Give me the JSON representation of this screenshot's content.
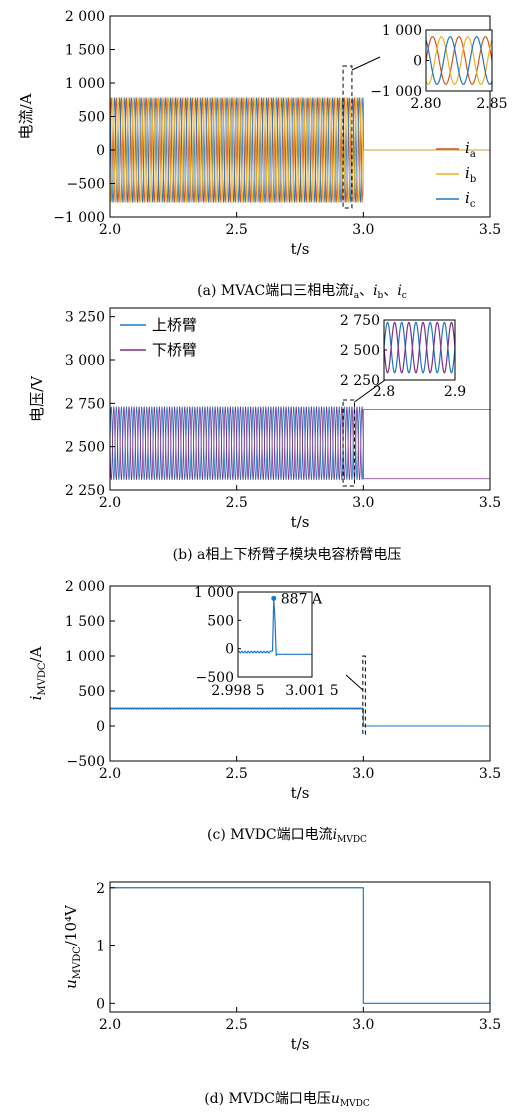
{
  "colors": {
    "ia": "#d9541e",
    "ib": "#edb120",
    "ic": "#1f77c4",
    "upper": "#1f77c4",
    "lower": "#7e2f8e",
    "line": "#1f77c4"
  },
  "chart_data": [
    {
      "id": "a",
      "type": "line",
      "caption_prefix": "(a)  MVAC端口三相电流",
      "caption_vars": "i",
      "caption_subs": [
        "a",
        "b",
        "c"
      ],
      "xlabel": "t/s",
      "ylabel": "电流/A",
      "xlim": [
        2.0,
        3.5
      ],
      "ylim": [
        -1000,
        2000
      ],
      "xticks": [
        "2.0",
        "2.5",
        "3.0",
        "3.5"
      ],
      "yticks": [
        "−1 000",
        "−500",
        "0",
        "500",
        "1 000",
        "1 500",
        "2 000"
      ],
      "ytick_values": [
        -1000,
        -500,
        0,
        500,
        1000,
        1500,
        2000
      ],
      "waveform": {
        "amplitude": 780,
        "frequency_hz": 50,
        "phases": 3,
        "stop_at": 3.0,
        "after_value": 0
      },
      "legend": {
        "position": "right",
        "entries": [
          "i_a",
          "i_b",
          "i_c"
        ],
        "var": "i",
        "subs": [
          "a",
          "b",
          "c"
        ]
      },
      "inset": {
        "xlim": [
          2.8,
          2.85
        ],
        "ylim": [
          -1000,
          1000
        ],
        "xticks": [
          "2.80",
          "2.85"
        ],
        "yticks": [
          "1 000",
          "0",
          "−1 000"
        ]
      }
    },
    {
      "id": "b",
      "type": "line",
      "caption": "(b)  a相上下桥臂子模块电容桥臂电压",
      "xlabel": "t/s",
      "ylabel": "电压/V",
      "xlim": [
        2.0,
        3.5
      ],
      "ylim": [
        2250,
        3300
      ],
      "xticks": [
        "2.0",
        "2.5",
        "3.0",
        "3.5"
      ],
      "yticks": [
        "2 250",
        "2 500",
        "2 750",
        "3 000",
        "3 250"
      ],
      "ytick_values": [
        2250,
        2500,
        2750,
        3000,
        3250
      ],
      "series": [
        {
          "name": "上桥臂",
          "center": 2520,
          "amplitude": 210,
          "after_value": 2715
        },
        {
          "name": "下桥臂",
          "center": 2520,
          "amplitude": 210,
          "after_value": 2315
        }
      ],
      "legend": {
        "position": "top-left"
      },
      "inset": {
        "xlim": [
          2.8,
          2.9
        ],
        "ylim": [
          2250,
          2750
        ],
        "xticks": [
          "2.8",
          "2.9"
        ],
        "yticks": [
          "2 750",
          "2 500",
          "2 250"
        ]
      }
    },
    {
      "id": "c",
      "type": "line",
      "caption_prefix": "(c)  MVDC端口电流",
      "caption_var": "i",
      "caption_sub": "MVDC",
      "xlabel": "t/s",
      "ylabel_var": "i",
      "ylabel_sub": "MVDC",
      "ylabel_unit": "/A",
      "xlim": [
        2.0,
        3.5
      ],
      "ylim": [
        -500,
        2000
      ],
      "xticks": [
        "2.0",
        "2.5",
        "3.0",
        "3.5"
      ],
      "yticks": [
        "−500",
        "0",
        "500",
        "1 000",
        "1 500",
        "2 000"
      ],
      "ytick_values": [
        -500,
        0,
        500,
        1000,
        1500,
        2000
      ],
      "series": [
        {
          "name": "i_MVDC",
          "before_value": 250,
          "after_value": 0,
          "step_at": 3.0
        }
      ],
      "inset": {
        "xticks": [
          "2.998 5",
          "3.001 5"
        ],
        "yticks": [
          "1 000",
          "500",
          "0",
          "−500"
        ],
        "peak_value": 887,
        "annotation": "887 A"
      }
    },
    {
      "id": "d",
      "type": "line",
      "caption_prefix": "(d)  MVDC端口电压",
      "caption_var": "u",
      "caption_sub": "MVDC",
      "xlabel": "t/s",
      "ylabel_var": "u",
      "ylabel_sub": "MVDC",
      "ylabel_unit": "/10⁴V",
      "xlim": [
        2.0,
        3.5
      ],
      "ylim": [
        -0.15,
        2.1
      ],
      "xticks": [
        "2.0",
        "2.5",
        "3.0",
        "3.5"
      ],
      "yticks": [
        "0",
        "1",
        "2"
      ],
      "ytick_values": [
        0,
        1,
        2
      ],
      "series": [
        {
          "name": "u_MVDC",
          "before_value": 2,
          "after_value": 0,
          "step_at": 3.0
        }
      ]
    }
  ]
}
